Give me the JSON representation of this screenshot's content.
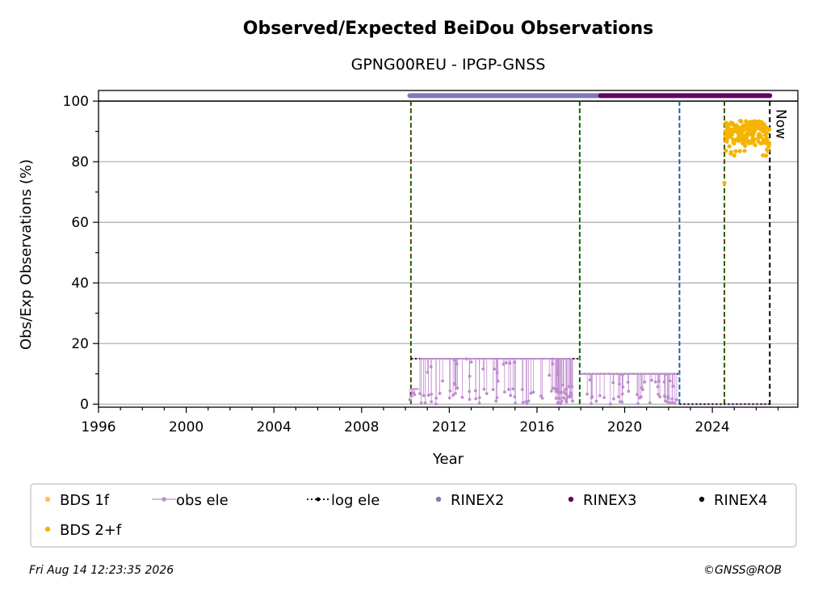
{
  "chart_data": {
    "type": "scatter",
    "title": "Observed/Expected BeiDou Observations",
    "subtitle": "GPNG00REU - IPGP-GNSS",
    "xlabel": "Year",
    "ylabel": "Obs/Exp Observations (%)",
    "xlim": [
      1996,
      2027.9
    ],
    "ylim": [
      -1,
      103.5
    ],
    "x_ticks": [
      "1996",
      "2000",
      "2004",
      "2008",
      "2012",
      "2016",
      "2020",
      "2024"
    ],
    "y_ticks": [
      "0",
      "20",
      "40",
      "60",
      "80",
      "100"
    ],
    "grid": "y",
    "legend_position": "bottom",
    "now_label": "Now",
    "now_x": 2026.62,
    "vlines": [
      {
        "x": 2010.25,
        "style": "green-red",
        "color": "#007000"
      },
      {
        "x": 2017.95,
        "style": "green",
        "color": "#007000"
      },
      {
        "x": 2022.5,
        "style": "blue",
        "color": "#1f5fa8"
      },
      {
        "x": 2024.55,
        "style": "green-red",
        "color": "#007000"
      }
    ],
    "series": [
      {
        "name": "BDS 1f",
        "color": "#f5c842",
        "values": []
      },
      {
        "name": "BDS 2+f",
        "color": "#f5b400",
        "x": [
          2024.55,
          2024.7,
          2024.9,
          2025.1,
          2025.3,
          2025.5,
          2025.7,
          2025.9,
          2026.1,
          2026.3,
          2026.5,
          2026.6
        ],
        "y": [
          73,
          91,
          90,
          92,
          89,
          91,
          90,
          92,
          88,
          90,
          87,
          86
        ]
      },
      {
        "name": "obs ele",
        "color": "#c08ccf",
        "segments": [
          {
            "x": [
              2010.2,
              2010.6
            ],
            "y": [
              5,
              5
            ]
          },
          {
            "x": [
              2010.65,
              2017.5
            ],
            "y": [
              15,
              15
            ]
          },
          {
            "x": [
              2017.95,
              2022.4
            ],
            "y": [
              10,
              10
            ]
          }
        ]
      },
      {
        "name": "log ele",
        "color": "#000000",
        "segments": [
          {
            "x": [
              2010.25,
              2017.95
            ],
            "y": [
              15,
              15
            ]
          },
          {
            "x": [
              2017.95,
              2022.5
            ],
            "y": [
              10,
              10
            ]
          },
          {
            "x": [
              2022.5,
              2026.62
            ],
            "y": [
              0,
              0
            ]
          }
        ]
      },
      {
        "name": "RINEX2",
        "color": "#8078bb",
        "x_range": [
          2010.2,
          2018.9
        ],
        "y": 101.8
      },
      {
        "name": "RINEX3",
        "color": "#660066",
        "x_range": [
          2018.9,
          2026.62
        ],
        "y": 101.8
      },
      {
        "name": "RINEX4",
        "color": "#1a001a",
        "values": []
      }
    ]
  },
  "legend": {
    "items": [
      {
        "label": "BDS 1f",
        "color": "#f5c842"
      },
      {
        "label": "obs ele",
        "color": "#c08ccf"
      },
      {
        "label": "log ele",
        "color": "#000000"
      },
      {
        "label": "RINEX2",
        "color": "#8078bb"
      },
      {
        "label": "RINEX3",
        "color": "#660066"
      },
      {
        "label": "RINEX4",
        "color": "#1a001a"
      },
      {
        "label": "BDS 2+f",
        "color": "#f5b400"
      }
    ]
  },
  "footer": {
    "timestamp": "Fri Aug 14 12:23:35 2026",
    "credit": "©GNSS@ROB"
  }
}
